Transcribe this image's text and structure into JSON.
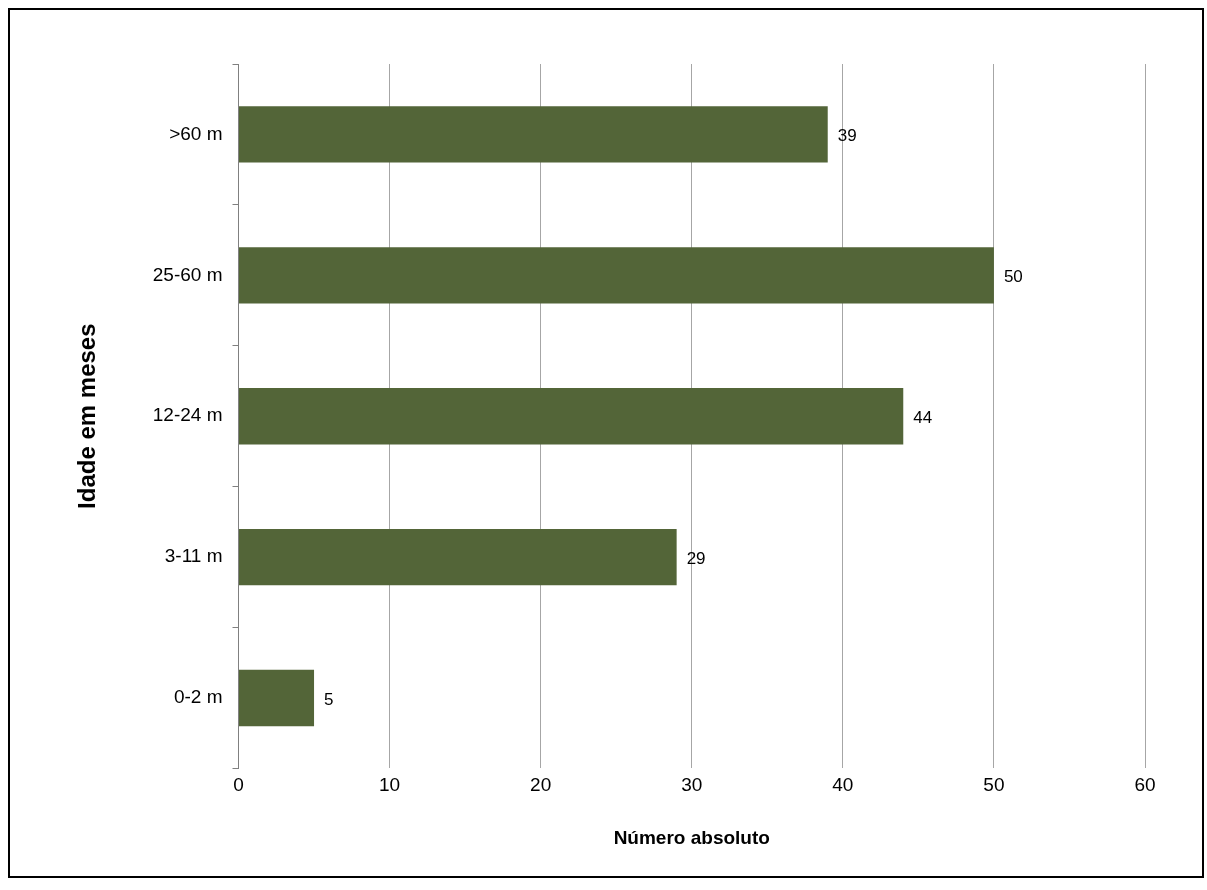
{
  "chart_data": {
    "type": "bar",
    "orientation": "horizontal",
    "xlabel": "Número absoluto",
    "ylabel": "Idade em meses",
    "categories": [
      ">60 m",
      "25-60 m",
      "12-24 m",
      "3-11 m",
      "0-2 m"
    ],
    "values": [
      39,
      50,
      44,
      29,
      5
    ],
    "color": "#536538",
    "xlim": [
      0,
      60
    ],
    "xticks": [
      0,
      10,
      20,
      30,
      40,
      50,
      60
    ],
    "grid": "x",
    "data_labels": true,
    "legend": false
  }
}
